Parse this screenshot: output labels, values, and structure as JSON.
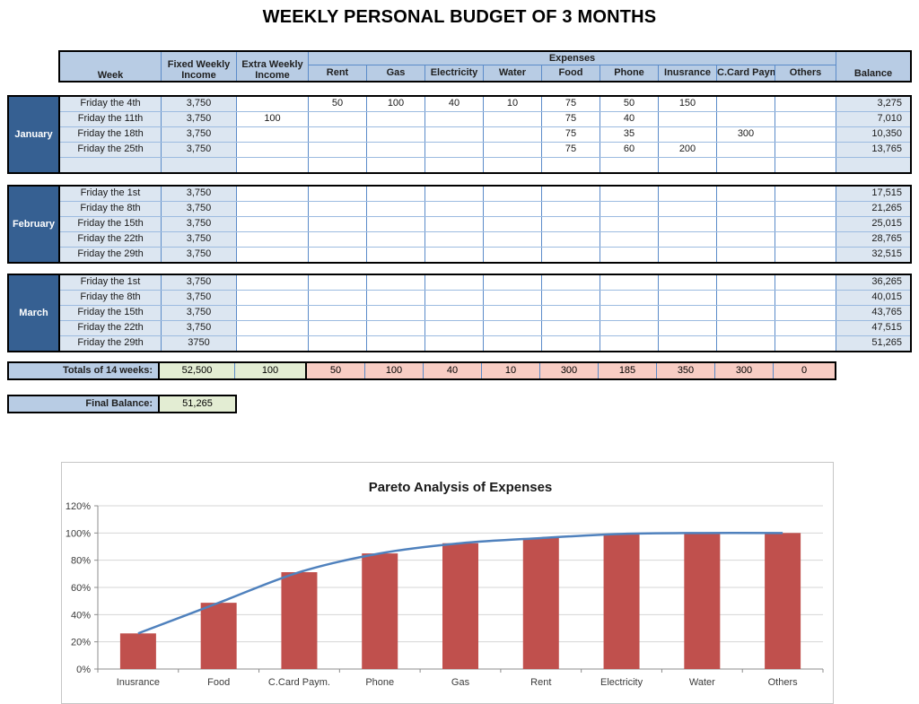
{
  "title": "WEEKLY PERSONAL BUDGET OF 3 MONTHS",
  "table": {
    "headers": {
      "week": "Week",
      "fixed_income": "Fixed Weekly Income",
      "extra_income": "Extra Weekly Income",
      "expenses_group": "Expenses",
      "expense_cols": [
        "Rent",
        "Gas",
        "Electricity",
        "Water",
        "Food",
        "Phone",
        "Inusrance",
        "C.Card Paym",
        "Others"
      ],
      "balance": "Balance"
    },
    "months": [
      {
        "name": "January",
        "rows": [
          {
            "week": "Friday the 4th",
            "fixed": "3,750",
            "extra": "",
            "exp": [
              "50",
              "100",
              "40",
              "10",
              "75",
              "50",
              "150",
              "",
              ""
            ],
            "balance": "3,275"
          },
          {
            "week": "Friday the 11th",
            "fixed": "3,750",
            "extra": "100",
            "exp": [
              "",
              "",
              "",
              "",
              "75",
              "40",
              "",
              "",
              ""
            ],
            "balance": "7,010"
          },
          {
            "week": "Friday the 18th",
            "fixed": "3,750",
            "extra": "",
            "exp": [
              "",
              "",
              "",
              "",
              "75",
              "35",
              "",
              "300",
              ""
            ],
            "balance": "10,350"
          },
          {
            "week": "Friday the 25th",
            "fixed": "3,750",
            "extra": "",
            "exp": [
              "",
              "",
              "",
              "",
              "75",
              "60",
              "200",
              "",
              ""
            ],
            "balance": "13,765"
          },
          {
            "week": "",
            "fixed": "",
            "extra": "",
            "exp": [
              "",
              "",
              "",
              "",
              "",
              "",
              "",
              "",
              ""
            ],
            "balance": ""
          }
        ]
      },
      {
        "name": "February",
        "rows": [
          {
            "week": "Friday the 1st",
            "fixed": "3,750",
            "extra": "",
            "exp": [
              "",
              "",
              "",
              "",
              "",
              "",
              "",
              "",
              ""
            ],
            "balance": "17,515"
          },
          {
            "week": "Friday the 8th",
            "fixed": "3,750",
            "extra": "",
            "exp": [
              "",
              "",
              "",
              "",
              "",
              "",
              "",
              "",
              ""
            ],
            "balance": "21,265"
          },
          {
            "week": "Friday the 15th",
            "fixed": "3,750",
            "extra": "",
            "exp": [
              "",
              "",
              "",
              "",
              "",
              "",
              "",
              "",
              ""
            ],
            "balance": "25,015"
          },
          {
            "week": "Friday the 22th",
            "fixed": "3,750",
            "extra": "",
            "exp": [
              "",
              "",
              "",
              "",
              "",
              "",
              "",
              "",
              ""
            ],
            "balance": "28,765"
          },
          {
            "week": "Friday the 29th",
            "fixed": "3,750",
            "extra": "",
            "exp": [
              "",
              "",
              "",
              "",
              "",
              "",
              "",
              "",
              ""
            ],
            "balance": "32,515"
          }
        ]
      },
      {
        "name": "March",
        "rows": [
          {
            "week": "Friday the 1st",
            "fixed": "3,750",
            "extra": "",
            "exp": [
              "",
              "",
              "",
              "",
              "",
              "",
              "",
              "",
              ""
            ],
            "balance": "36,265"
          },
          {
            "week": "Friday the 8th",
            "fixed": "3,750",
            "extra": "",
            "exp": [
              "",
              "",
              "",
              "",
              "",
              "",
              "",
              "",
              ""
            ],
            "balance": "40,015"
          },
          {
            "week": "Friday the 15th",
            "fixed": "3,750",
            "extra": "",
            "exp": [
              "",
              "",
              "",
              "",
              "",
              "",
              "",
              "",
              ""
            ],
            "balance": "43,765"
          },
          {
            "week": "Friday the 22th",
            "fixed": "3,750",
            "extra": "",
            "exp": [
              "",
              "",
              "",
              "",
              "",
              "",
              "",
              "",
              ""
            ],
            "balance": "47,515"
          },
          {
            "week": "Friday the 29th",
            "fixed": "3750",
            "extra": "",
            "exp": [
              "",
              "",
              "",
              "",
              "",
              "",
              "",
              "",
              ""
            ],
            "balance": "51,265"
          }
        ]
      }
    ],
    "totals": {
      "label": "Totals of 14 weeks:",
      "income": [
        "52,500",
        "100"
      ],
      "expenses": [
        "50",
        "100",
        "40",
        "10",
        "300",
        "185",
        "350",
        "300",
        "0"
      ]
    },
    "final": {
      "label": "Final Balance:",
      "value": "51,265"
    }
  },
  "chart_data": {
    "type": "pareto (cumulative bar + line)",
    "title": "Pareto Analysis of Expenses",
    "categories": [
      "Inusrance",
      "Food",
      "C.Card Paym.",
      "Phone",
      "Gas",
      "Rent",
      "Electricity",
      "Water",
      "Others"
    ],
    "series": [
      {
        "name": "cumulative-percent-bars",
        "values": [
          26.2,
          48.7,
          71.2,
          85.0,
          92.5,
          96.3,
          99.3,
          100,
          100
        ]
      },
      {
        "name": "cumulative-percent-line",
        "values": [
          26.2,
          48.7,
          71.2,
          85.0,
          92.5,
          96.3,
          99.3,
          100,
          100
        ]
      }
    ],
    "xlabel": "",
    "ylabel": "",
    "ylim": [
      0,
      120
    ],
    "yticks": [
      "0%",
      "20%",
      "40%",
      "60%",
      "80%",
      "100%",
      "120%"
    ],
    "grid": true,
    "legend_position": "none",
    "bar_color": "#C0504D",
    "line_color": "#4F81BD"
  },
  "colors": {
    "header_fill": "#B8CCE4",
    "light_cell_fill": "#DCE6F1",
    "month_fill": "#366092",
    "income_total_fill": "#E3EDD3",
    "expense_total_fill": "#F8CDC4",
    "cell_border_blue": "#5B8BC9",
    "row_border_blue": "#9CBBE0"
  }
}
